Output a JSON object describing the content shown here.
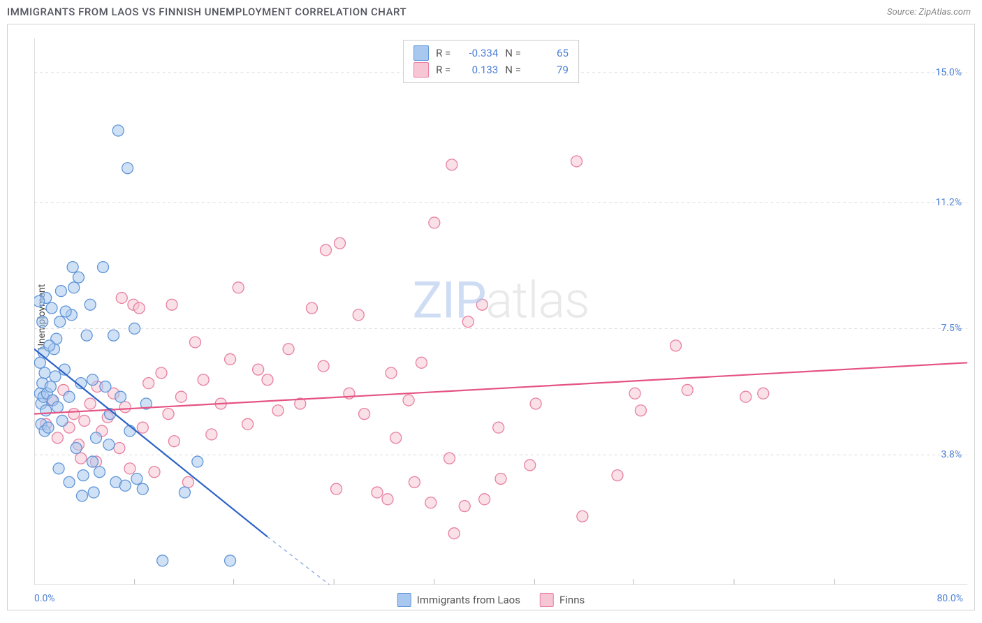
{
  "header": {
    "title": "IMMIGRANTS FROM LAOS VS FINNISH UNEMPLOYMENT CORRELATION CHART",
    "source_prefix": "Source: ",
    "source_name": "ZipAtlas.com"
  },
  "watermark": {
    "zip": "ZIP",
    "atlas": "atlas"
  },
  "axes": {
    "y_label": "Unemployment",
    "x_min": 0.0,
    "x_max": 80.0,
    "y_min": 0.0,
    "y_max": 16.0,
    "x_ticks": [
      0.0,
      80.0
    ],
    "x_tick_labels": [
      "0.0%",
      "80.0%"
    ],
    "y_ticks": [
      3.8,
      7.5,
      11.2,
      15.0
    ],
    "y_tick_labels": [
      "3.8%",
      "7.5%",
      "11.2%",
      "15.0%"
    ],
    "minor_x_ticks": [
      8.6,
      17.1,
      25.7,
      34.3,
      42.9,
      51.4,
      60.0,
      68.6
    ],
    "grid_color": "#dcdcdc",
    "axis_color": "#bbbbbb",
    "tick_label_color": "#4d7fd6"
  },
  "series": {
    "blue": {
      "name": "Immigrants from Laos",
      "fill": "#a9c8ef",
      "stroke": "#5f95d8",
      "line_color": "#2b62c7",
      "R": "-0.334",
      "N": "65",
      "trend": {
        "x1": 0.0,
        "y1": 6.9,
        "x2": 20.0,
        "y2": 1.4
      },
      "trend_extend": {
        "x1": 20.0,
        "y1": 1.4,
        "x2": 25.3,
        "y2": 0.0
      },
      "points": [
        [
          0.5,
          5.6
        ],
        [
          0.6,
          5.3
        ],
        [
          0.7,
          5.9
        ],
        [
          0.8,
          5.5
        ],
        [
          0.9,
          6.2
        ],
        [
          1.0,
          5.1
        ],
        [
          1.1,
          5.6
        ],
        [
          0.6,
          4.7
        ],
        [
          0.9,
          4.5
        ],
        [
          1.2,
          4.6
        ],
        [
          0.5,
          6.5
        ],
        [
          1.4,
          5.8
        ],
        [
          0.8,
          6.8
        ],
        [
          1.6,
          5.4
        ],
        [
          1.0,
          8.4
        ],
        [
          1.8,
          6.1
        ],
        [
          2.0,
          5.2
        ],
        [
          1.5,
          8.1
        ],
        [
          2.2,
          7.7
        ],
        [
          2.3,
          8.6
        ],
        [
          2.6,
          6.3
        ],
        [
          3.0,
          5.5
        ],
        [
          3.2,
          7.9
        ],
        [
          3.3,
          9.3
        ],
        [
          3.4,
          8.7
        ],
        [
          3.6,
          4.0
        ],
        [
          3.8,
          9.0
        ],
        [
          4.0,
          5.9
        ],
        [
          4.2,
          3.2
        ],
        [
          4.5,
          7.3
        ],
        [
          4.8,
          8.2
        ],
        [
          5.0,
          6.0
        ],
        [
          5.1,
          2.7
        ],
        [
          5.3,
          4.3
        ],
        [
          5.6,
          3.3
        ],
        [
          5.9,
          9.3
        ],
        [
          6.1,
          5.8
        ],
        [
          6.4,
          4.1
        ],
        [
          6.8,
          7.3
        ],
        [
          7.0,
          3.0
        ],
        [
          7.2,
          13.3
        ],
        [
          7.4,
          5.5
        ],
        [
          7.8,
          2.9
        ],
        [
          8.0,
          12.2
        ],
        [
          8.2,
          4.5
        ],
        [
          8.6,
          7.5
        ],
        [
          8.8,
          3.1
        ],
        [
          9.3,
          2.8
        ],
        [
          9.6,
          5.3
        ],
        [
          5.0,
          3.6
        ],
        [
          2.1,
          3.4
        ],
        [
          3.0,
          3.0
        ],
        [
          4.1,
          2.6
        ],
        [
          1.7,
          6.9
        ],
        [
          2.4,
          4.8
        ],
        [
          0.4,
          8.3
        ],
        [
          0.7,
          7.7
        ],
        [
          1.9,
          7.2
        ],
        [
          1.3,
          7.0
        ],
        [
          2.7,
          8.0
        ],
        [
          6.5,
          5.0
        ],
        [
          11.0,
          0.7
        ],
        [
          12.9,
          2.7
        ],
        [
          16.8,
          0.7
        ],
        [
          14.0,
          3.6
        ]
      ]
    },
    "pink": {
      "name": "Finns",
      "fill": "#f6c6d4",
      "stroke": "#e87fa1",
      "line_color": "#e55383",
      "R": "0.133",
      "N": "79",
      "trend": {
        "x1": 0.0,
        "y1": 5.0,
        "x2": 80.0,
        "y2": 6.5
      },
      "points": [
        [
          1.0,
          4.7
        ],
        [
          1.5,
          5.4
        ],
        [
          2.0,
          4.3
        ],
        [
          2.5,
          5.7
        ],
        [
          3.0,
          4.6
        ],
        [
          3.4,
          5.0
        ],
        [
          3.8,
          4.1
        ],
        [
          4.3,
          4.8
        ],
        [
          4.8,
          5.3
        ],
        [
          5.3,
          3.6
        ],
        [
          5.8,
          4.5
        ],
        [
          6.3,
          4.9
        ],
        [
          6.8,
          5.6
        ],
        [
          7.3,
          4.0
        ],
        [
          7.8,
          5.2
        ],
        [
          8.2,
          3.4
        ],
        [
          8.5,
          8.2
        ],
        [
          9.3,
          4.6
        ],
        [
          9.8,
          5.9
        ],
        [
          10.3,
          3.3
        ],
        [
          10.9,
          6.2
        ],
        [
          11.5,
          5.0
        ],
        [
          12.0,
          4.2
        ],
        [
          12.6,
          5.5
        ],
        [
          13.2,
          3.0
        ],
        [
          13.8,
          7.1
        ],
        [
          14.5,
          6.0
        ],
        [
          15.2,
          4.4
        ],
        [
          16.0,
          5.3
        ],
        [
          16.8,
          6.6
        ],
        [
          17.5,
          8.7
        ],
        [
          18.3,
          4.7
        ],
        [
          19.2,
          6.3
        ],
        [
          20.0,
          6.0
        ],
        [
          20.9,
          5.1
        ],
        [
          21.8,
          6.9
        ],
        [
          22.8,
          5.3
        ],
        [
          23.8,
          8.1
        ],
        [
          24.8,
          6.4
        ],
        [
          25.0,
          9.8
        ],
        [
          25.9,
          2.8
        ],
        [
          26.2,
          10.0
        ],
        [
          27.0,
          5.6
        ],
        [
          27.8,
          7.9
        ],
        [
          28.3,
          5.0
        ],
        [
          29.4,
          2.7
        ],
        [
          30.3,
          2.5
        ],
        [
          30.6,
          6.2
        ],
        [
          31.0,
          4.3
        ],
        [
          32.1,
          5.4
        ],
        [
          32.6,
          3.0
        ],
        [
          33.2,
          6.5
        ],
        [
          34.0,
          2.4
        ],
        [
          34.3,
          10.6
        ],
        [
          35.6,
          3.7
        ],
        [
          35.8,
          12.3
        ],
        [
          36.0,
          1.5
        ],
        [
          36.9,
          2.3
        ],
        [
          37.2,
          7.7
        ],
        [
          38.4,
          8.2
        ],
        [
          38.6,
          2.5
        ],
        [
          39.8,
          4.6
        ],
        [
          40.0,
          3.1
        ],
        [
          42.5,
          3.5
        ],
        [
          43.0,
          5.3
        ],
        [
          46.5,
          12.4
        ],
        [
          47.0,
          2.0
        ],
        [
          50.0,
          3.2
        ],
        [
          51.5,
          5.6
        ],
        [
          52.0,
          5.1
        ],
        [
          55.0,
          7.0
        ],
        [
          56.0,
          5.7
        ],
        [
          61.0,
          5.5
        ],
        [
          62.5,
          5.6
        ],
        [
          7.5,
          8.4
        ],
        [
          11.8,
          8.2
        ],
        [
          5.4,
          5.8
        ],
        [
          9.0,
          8.1
        ],
        [
          4.0,
          3.7
        ]
      ]
    }
  },
  "legend_top": {
    "r_prefix": "R = ",
    "n_prefix": "N = "
  },
  "legend_bottom": {
    "items": [
      "blue",
      "pink"
    ]
  },
  "style": {
    "marker_radius": 8,
    "marker_stroke_width": 1.3,
    "marker_opacity": 0.55,
    "trend_width": 2.2,
    "background": "#ffffff"
  }
}
